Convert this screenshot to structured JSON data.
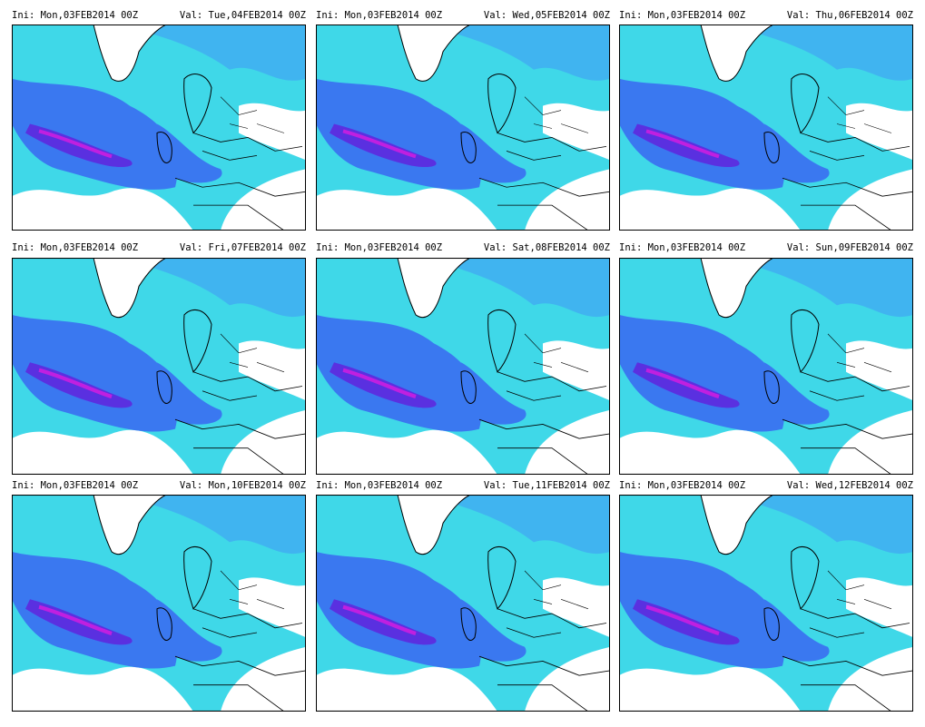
{
  "panels": [
    {
      "init": "Ini: Mon,03FEB2014 00Z",
      "valid": "Val: Tue,04FEB2014 00Z"
    },
    {
      "init": "Ini: Mon,03FEB2014 00Z",
      "valid": "Val: Wed,05FEB2014 00Z"
    },
    {
      "init": "Ini: Mon,03FEB2014 00Z",
      "valid": "Val: Thu,06FEB2014 00Z"
    },
    {
      "init": "Ini: Mon,03FEB2014 00Z",
      "valid": "Val: Fri,07FEB2014 00Z"
    },
    {
      "init": "Ini: Mon,03FEB2014 00Z",
      "valid": "Val: Sat,08FEB2014 00Z"
    },
    {
      "init": "Ini: Mon,03FEB2014 00Z",
      "valid": "Val: Sun,09FEB2014 00Z"
    },
    {
      "init": "Ini: Mon,03FEB2014 00Z",
      "valid": "Val: Mon,10FEB2014 00Z"
    },
    {
      "init": "Ini: Mon,03FEB2014 00Z",
      "valid": "Val: Tue,11FEB2014 00Z"
    },
    {
      "init": "Ini: Mon,03FEB2014 00Z",
      "valid": "Val: Wed,12FEB2014 00Z"
    }
  ]
}
